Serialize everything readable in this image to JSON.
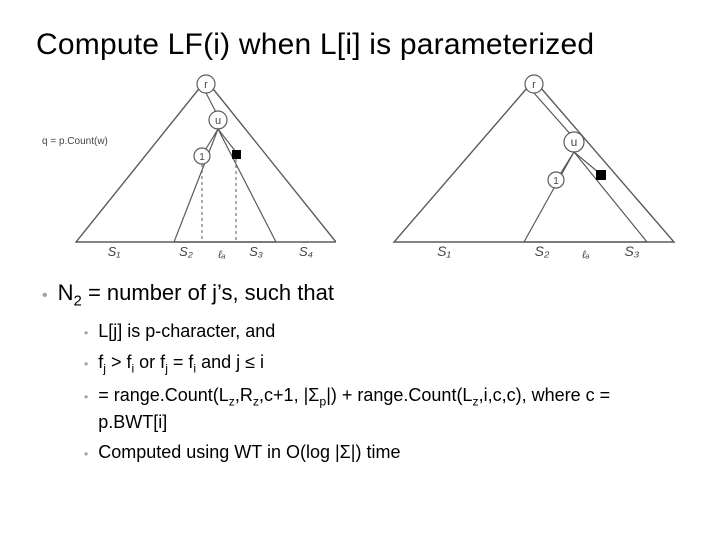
{
  "title": "Compute LF(i) when L[i] is parameterized",
  "diagram_left": {
    "root_label": "r",
    "inner_label": "u",
    "leaf1_in_u": "1",
    "black_sq": "",
    "side_text": "q = p.Count(w)",
    "S1": "S₁",
    "S2": "S₂",
    "S3": "S₃",
    "S4": "S₄",
    "ell": "ℓₐ",
    "colors": {
      "stroke": "#5b5b5b",
      "fill": "#ffffff",
      "text": "#444444"
    }
  },
  "diagram_right": {
    "root_label": "r",
    "inner_label": "u",
    "leaf1_in_u": "1",
    "black_sq": "",
    "S1": "S₁",
    "S2": "S₂",
    "S3": "S₃",
    "ell": "ℓₐ",
    "colors": {
      "stroke": "#5b5b5b",
      "fill": "#ffffff",
      "text": "#444444"
    }
  },
  "main_bullet": {
    "pre": "N",
    "sub": "2",
    "post": " = number of j’s, such that"
  },
  "sub_bullets": [
    {
      "html": "L[j] is p-character, and"
    },
    {
      "html": "f<sub>j</sub> &gt; f<sub>i</sub> or f<sub>j</sub> = f<sub>i</sub> and j ≤ i"
    },
    {
      "html": "= range.Count(L<sub>z</sub>,R<sub>z</sub>,c+1, |Σ<sub>p</sub>|) + range.Count(L<sub>z</sub>,i,c,c), where c = p.BWT[i]"
    },
    {
      "html": "Computed using WT in O(log |Σ|) time"
    }
  ],
  "style": {
    "bg": "#ffffff",
    "title_color": "#000000",
    "bullet_grey": "#9aa0a6"
  }
}
